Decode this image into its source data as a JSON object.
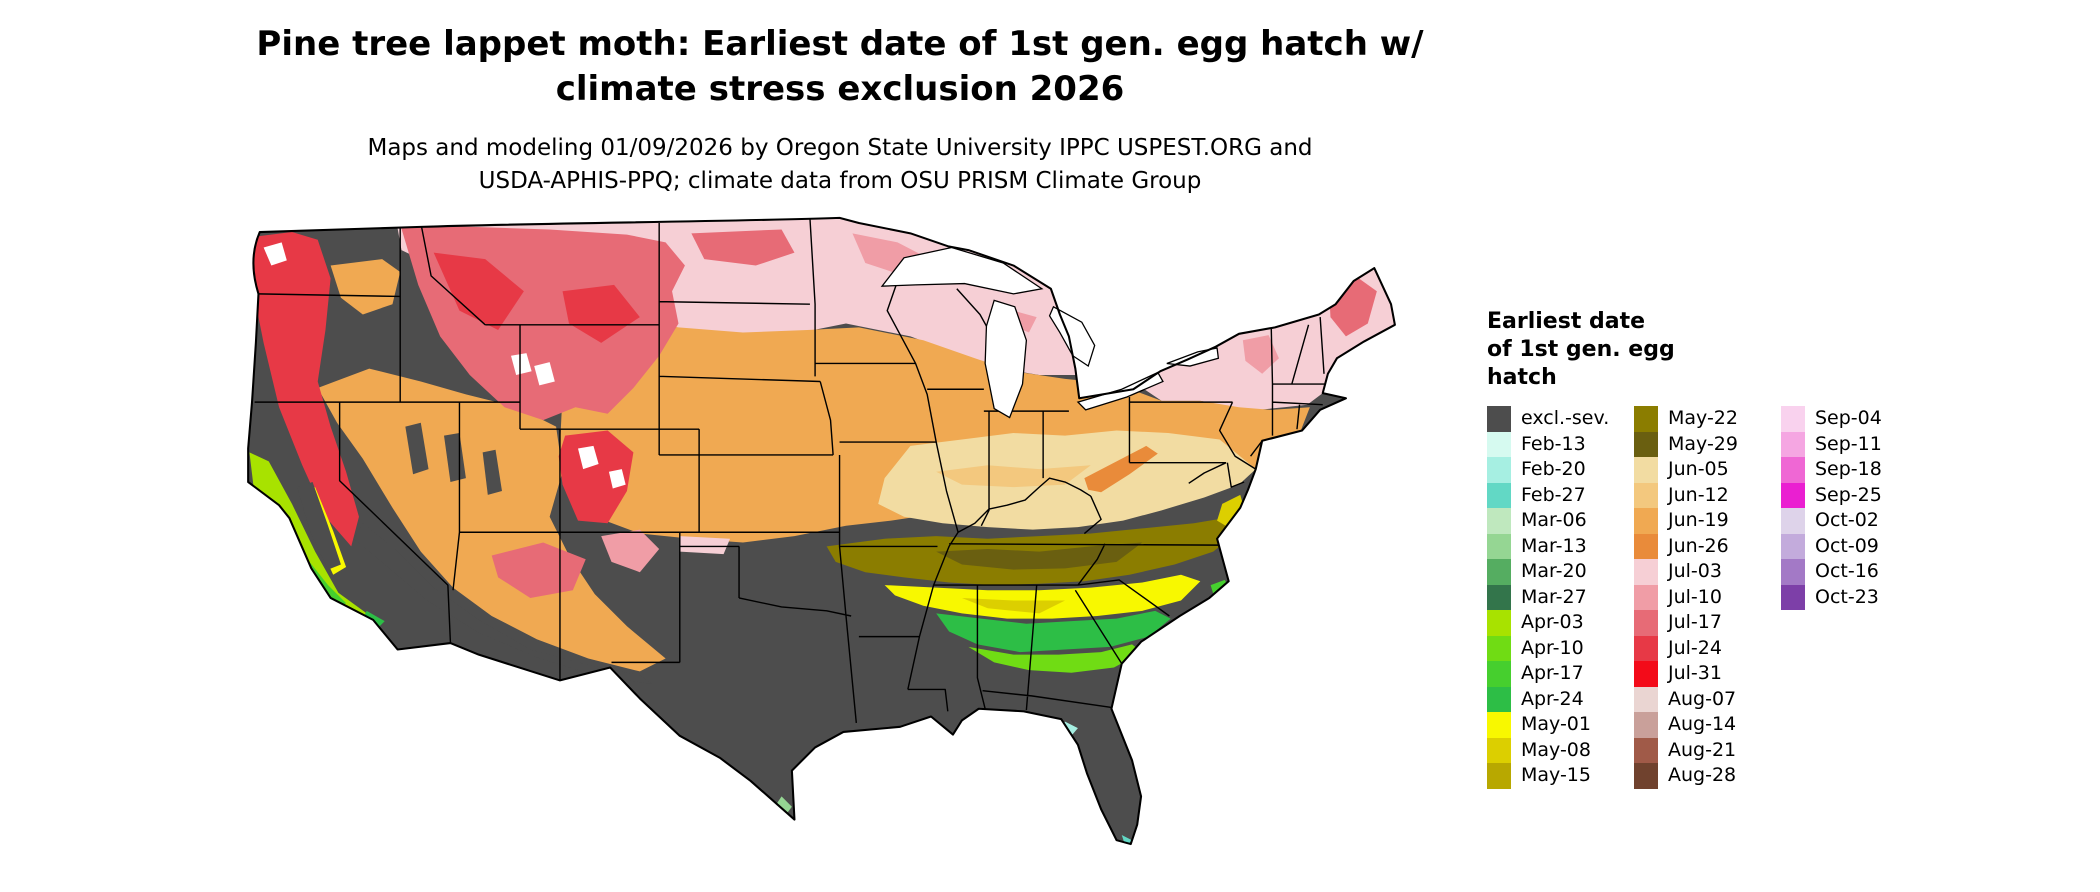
{
  "title_lines": [
    "Pine tree lappet moth: Earliest date of 1st gen. egg hatch w/",
    "climate stress exclusion 2026"
  ],
  "subtitle_lines": [
    "Maps and modeling 01/09/2026 by Oregon State University IPPC USPEST.ORG and",
    "USDA-APHIS-PPQ; climate data from OSU PRISM Climate Group"
  ],
  "legend": {
    "title_lines": [
      "Earliest date",
      "of 1st gen. egg",
      "hatch"
    ],
    "columns": [
      {
        "entries": [
          {
            "label": "excl.-sev.",
            "color": "#4D4D4D"
          },
          {
            "label": "Feb-13",
            "color": "#D6FAF0"
          },
          {
            "label": "Feb-20",
            "color": "#A6EFE2"
          },
          {
            "label": "Feb-27",
            "color": "#62D8C5"
          },
          {
            "label": "Mar-06",
            "color": "#BFE8BE"
          },
          {
            "label": "Mar-13",
            "color": "#95D693"
          },
          {
            "label": "Mar-20",
            "color": "#55AD61"
          },
          {
            "label": "Mar-27",
            "color": "#33754B"
          },
          {
            "label": "Apr-03",
            "color": "#A8E200"
          },
          {
            "label": "Apr-10",
            "color": "#70DC14"
          },
          {
            "label": "Apr-17",
            "color": "#46CF2E"
          },
          {
            "label": "Apr-24",
            "color": "#2DBE46"
          },
          {
            "label": "May-01",
            "color": "#F8F800"
          },
          {
            "label": "May-08",
            "color": "#DCCF00"
          },
          {
            "label": "May-15",
            "color": "#B8A800"
          }
        ]
      },
      {
        "entries": [
          {
            "label": "May-22",
            "color": "#8B7D00"
          },
          {
            "label": "May-29",
            "color": "#6A5F10"
          },
          {
            "label": "Jun-05",
            "color": "#F2DCA2"
          },
          {
            "label": "Jun-12",
            "color": "#F3C87E"
          },
          {
            "label": "Jun-19",
            "color": "#F0A952"
          },
          {
            "label": "Jun-26",
            "color": "#E98B3A"
          },
          {
            "label": "Jul-03",
            "color": "#F6CFD5"
          },
          {
            "label": "Jul-10",
            "color": "#F09DA6"
          },
          {
            "label": "Jul-17",
            "color": "#E76B76"
          },
          {
            "label": "Jul-24",
            "color": "#E73946"
          },
          {
            "label": "Jul-31",
            "color": "#F30B19"
          },
          {
            "label": "Aug-07",
            "color": "#EAD5D2"
          },
          {
            "label": "Aug-14",
            "color": "#C9A09A"
          },
          {
            "label": "Aug-21",
            "color": "#A05A48"
          },
          {
            "label": "Aug-28",
            "color": "#70422E"
          }
        ]
      },
      {
        "entries": [
          {
            "label": "Sep-04",
            "color": "#F9D2EE"
          },
          {
            "label": "Sep-11",
            "color": "#F5A6E2"
          },
          {
            "label": "Sep-18",
            "color": "#EF67D4"
          },
          {
            "label": "Sep-25",
            "color": "#EA1FD1"
          },
          {
            "label": "Oct-02",
            "color": "#DED3EA"
          },
          {
            "label": "Oct-09",
            "color": "#C3ABDC"
          },
          {
            "label": "Oct-16",
            "color": "#A379C6"
          },
          {
            "label": "Oct-23",
            "color": "#7D3FA8"
          }
        ]
      }
    ]
  },
  "map": {
    "region": "Continental United States",
    "ocean_color": "#FFFFFF",
    "state_border_color": "#000000",
    "excluded_fill": "excl.-sev."
  }
}
